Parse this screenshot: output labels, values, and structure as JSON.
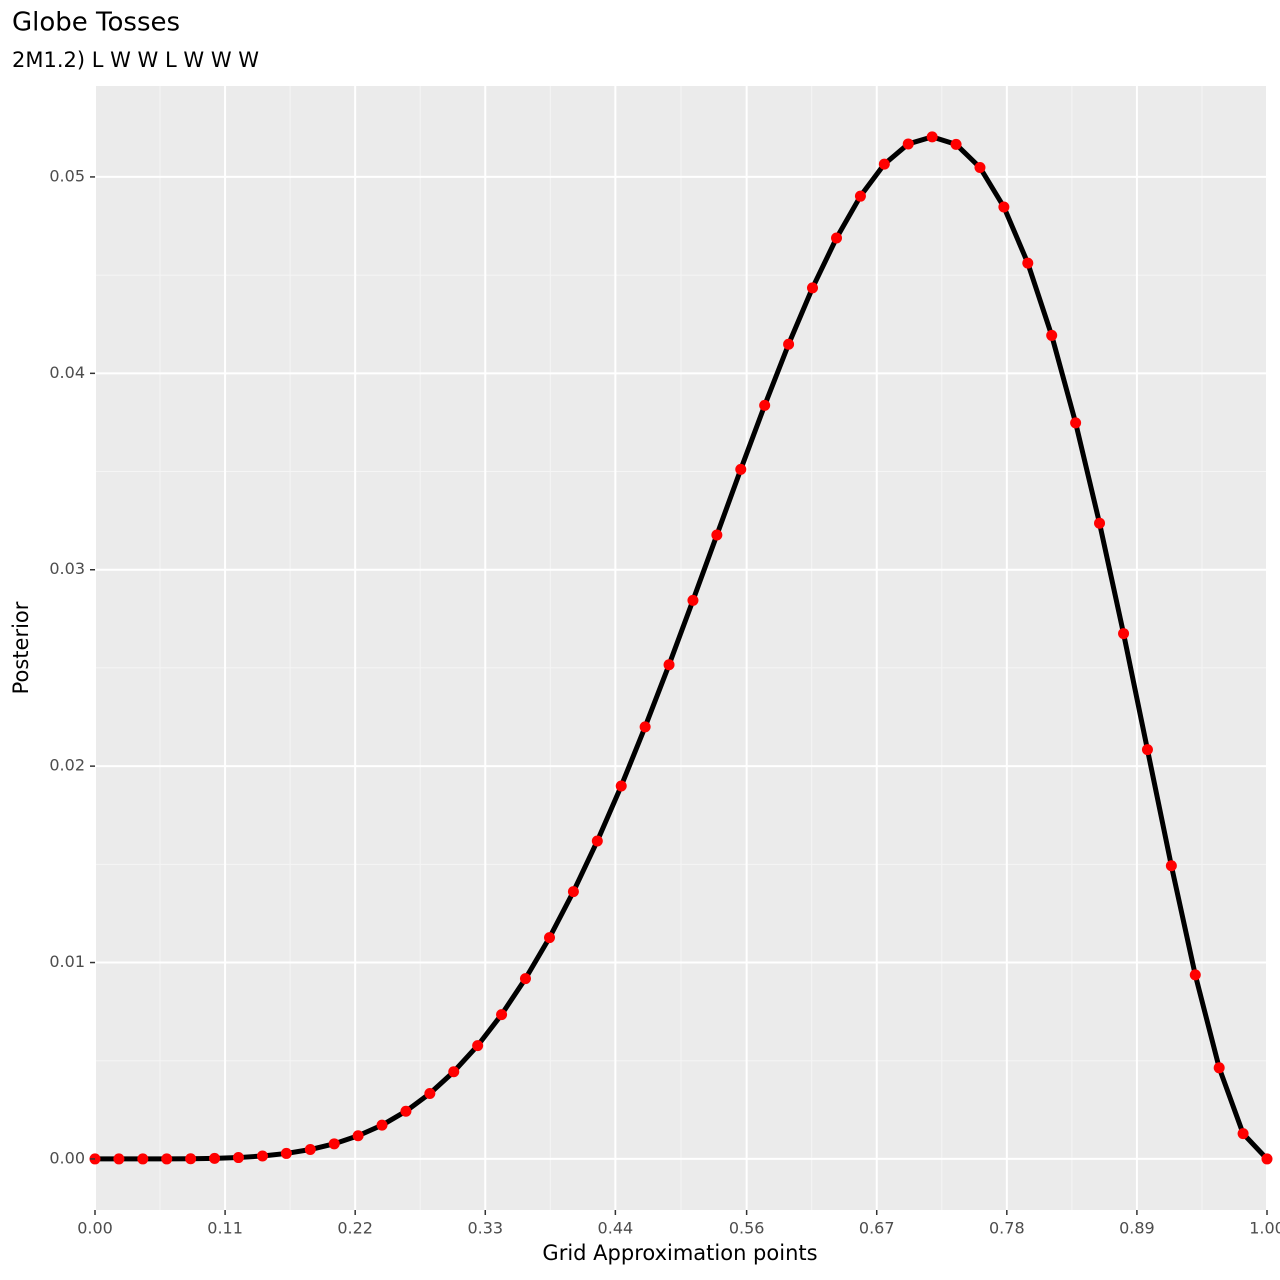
{
  "chart_data": {
    "type": "line",
    "title": "Globe Tosses",
    "subtitle": "2M1.2) L W W L W W W",
    "x_label": "Grid Approximation points",
    "y_label": "Posterior",
    "x": [
      0,
      0.0204,
      0.0408,
      0.0612,
      0.0816,
      0.102,
      0.1224,
      0.1429,
      0.1633,
      0.1837,
      0.2041,
      0.2245,
      0.2449,
      0.2653,
      0.2857,
      0.3061,
      0.3265,
      0.3469,
      0.3673,
      0.3878,
      0.4082,
      0.4286,
      0.449,
      0.4694,
      0.4898,
      0.5102,
      0.5306,
      0.551,
      0.5714,
      0.5918,
      0.6122,
      0.6327,
      0.6531,
      0.6735,
      0.6939,
      0.7143,
      0.7347,
      0.7551,
      0.7755,
      0.7959,
      0.8163,
      0.8367,
      0.8571,
      0.8776,
      0.898,
      0.9184,
      0.9388,
      0.9592,
      0.9796,
      1
    ],
    "series": [
      {
        "name": "Posterior",
        "color": "#000000",
        "point_color": "#ff0000",
        "values": [
          0,
          0,
          0,
          0,
          1e-05,
          3e-05,
          7e-05,
          0.00015,
          0.00028,
          0.00048,
          0.00077,
          0.00118,
          0.00172,
          0.00243,
          0.00333,
          0.00444,
          0.00577,
          0.00735,
          0.00918,
          0.01127,
          0.01361,
          0.01619,
          0.01899,
          0.022,
          0.02516,
          0.02844,
          0.03177,
          0.03511,
          0.03837,
          0.04148,
          0.04435,
          0.04689,
          0.04902,
          0.05065,
          0.05168,
          0.05204,
          0.05166,
          0.05048,
          0.04847,
          0.04561,
          0.04193,
          0.03748,
          0.03237,
          0.02675,
          0.02084,
          0.01493,
          0.00937,
          0.00464,
          0.00129,
          0
        ]
      }
    ],
    "xlim": [
      0,
      1
    ],
    "ylim": [
      -0.0026,
      0.05463
    ],
    "xticks": [
      {
        "value": 0,
        "label": "0.00"
      },
      {
        "value": 0.111,
        "label": "0.11"
      },
      {
        "value": 0.222,
        "label": "0.22"
      },
      {
        "value": 0.333,
        "label": "0.33"
      },
      {
        "value": 0.444,
        "label": "0.44"
      },
      {
        "value": 0.556,
        "label": "0.56"
      },
      {
        "value": 0.667,
        "label": "0.67"
      },
      {
        "value": 0.778,
        "label": "0.78"
      },
      {
        "value": 0.889,
        "label": "0.89"
      },
      {
        "value": 1,
        "label": "1.00"
      }
    ],
    "yticks": [
      {
        "value": 0,
        "label": "0.00"
      },
      {
        "value": 0.01,
        "label": "0.01"
      },
      {
        "value": 0.02,
        "label": "0.02"
      },
      {
        "value": 0.03,
        "label": "0.03"
      },
      {
        "value": 0.04,
        "label": "0.04"
      },
      {
        "value": 0.05,
        "label": "0.05"
      }
    ],
    "grid": true
  }
}
